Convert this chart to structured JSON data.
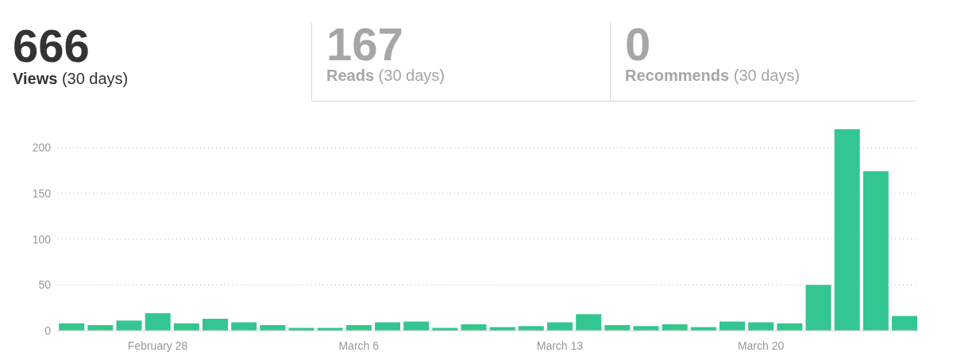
{
  "chart_data": [
    {
      "type": "other",
      "annotations": [
        "666",
        "Views",
        "(30 days)",
        "167",
        "Reads",
        "(30 days)",
        "0",
        "Recommends",
        "(30 days)"
      ],
      "colors": [
        "#333333",
        "#a6a6a6",
        "#a6a6a6"
      ]
    },
    {
      "type": "bar",
      "categories": [
        null,
        null,
        null,
        "February 28",
        null,
        null,
        null,
        null,
        null,
        null,
        "March 6",
        null,
        null,
        null,
        null,
        null,
        null,
        "March 13",
        null,
        null,
        null,
        null,
        null,
        null,
        "March 20",
        null,
        null,
        null,
        null,
        null
      ],
      "values": [
        8,
        6,
        11,
        19,
        8,
        13,
        9,
        6,
        3,
        3,
        6,
        9,
        10,
        3,
        7,
        4,
        5,
        9,
        18,
        6,
        5,
        7,
        4,
        10,
        9,
        8,
        50,
        220,
        174,
        16
      ],
      "color": "#34c690",
      "ylim": [
        0,
        220
      ],
      "yticks": [
        0,
        50,
        100,
        150,
        200
      ],
      "grid": "y"
    }
  ]
}
